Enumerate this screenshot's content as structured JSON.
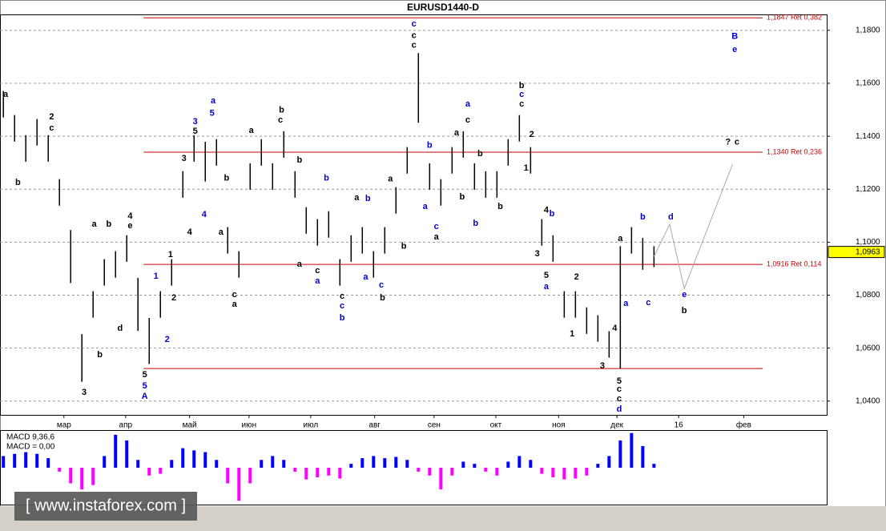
{
  "chart_data": {
    "type": "ohlc",
    "title": "EURUSD1440-D",
    "color": "#000000",
    "high": [
      1.1571,
      1.148,
      1.1404,
      1.1465,
      1.1404,
      1.1238,
      1.1046,
      1.0653,
      1.0815,
      1.0936,
      1.0966,
      1.1026,
      1.0865,
      1.0714,
      1.0815,
      1.0936,
      1.1268,
      1.1404,
      1.1379,
      1.1389,
      1.1057,
      1.0966,
      1.1298,
      1.1389,
      1.1298,
      1.1419,
      1.1268,
      1.1132,
      1.1087,
      1.1117,
      1.0936,
      1.1026,
      1.1057,
      1.0966,
      1.1057,
      1.1208,
      1.1359,
      1.1714,
      1.1298,
      1.1238,
      1.1359,
      1.1419,
      1.1298,
      1.1268,
      1.1268,
      1.1389,
      1.148,
      1.1359,
      1.1087,
      1.1026,
      1.0815,
      1.0815,
      1.0754,
      1.0724,
      1.0664,
      1.0985,
      1.1057,
      1.1016,
      1.0985
    ],
    "low": [
      1.1471,
      1.138,
      1.1304,
      1.1365,
      1.1304,
      1.1138,
      1.0846,
      1.0473,
      1.0715,
      1.0836,
      1.0866,
      1.0926,
      1.0665,
      1.054,
      1.0715,
      1.0836,
      1.1168,
      1.1304,
      1.1229,
      1.1289,
      1.0957,
      1.0866,
      1.1198,
      1.1289,
      1.1198,
      1.1319,
      1.1168,
      1.1032,
      1.0987,
      1.1017,
      1.0836,
      1.0926,
      1.0957,
      1.0866,
      1.0957,
      1.1108,
      1.1259,
      1.1451,
      1.1198,
      1.1138,
      1.1259,
      1.1319,
      1.1198,
      1.1168,
      1.1168,
      1.1289,
      1.138,
      1.1259,
      1.0987,
      1.0926,
      1.0715,
      1.0715,
      1.0654,
      1.0624,
      1.0564,
      1.0523,
      1.0957,
      1.0896,
      1.0906
    ],
    "xlim": [
      -0.3,
      73.4
    ],
    "xticks": [
      {
        "value": 5.4,
        "label": "мар"
      },
      {
        "value": 10.9,
        "label": "апр"
      },
      {
        "value": 16.6,
        "label": "май"
      },
      {
        "value": 21.9,
        "label": "июн"
      },
      {
        "value": 27.4,
        "label": "июл"
      },
      {
        "value": 33.1,
        "label": "авг"
      },
      {
        "value": 38.4,
        "label": "сен"
      },
      {
        "value": 43.9,
        "label": "окт"
      },
      {
        "value": 49.5,
        "label": "ноя"
      },
      {
        "value": 54.7,
        "label": "дек"
      },
      {
        "value": 60.2,
        "label": "16"
      },
      {
        "value": 66.0,
        "label": "фев"
      }
    ],
    "ylim": [
      1.0348,
      1.186
    ],
    "yticks": [
      {
        "value": 1.04,
        "label": "1,0400"
      },
      {
        "value": 1.06,
        "label": "1,0600"
      },
      {
        "value": 1.08,
        "label": "1,0800"
      },
      {
        "value": 1.1,
        "label": "1,1000"
      },
      {
        "value": 1.12,
        "label": "1,1200"
      },
      {
        "value": 1.14,
        "label": "1,1400"
      },
      {
        "value": 1.16,
        "label": "1,1600"
      },
      {
        "value": 1.18,
        "label": "1,1800"
      }
    ],
    "grid": true,
    "last_price": {
      "value": 1.0963,
      "label": "1,0963"
    },
    "levels_color": "#cc0000",
    "levels": [
      {
        "value": 1.1847,
        "label": "1,1847 Ret 0,382",
        "x_start": 12.5
      },
      {
        "value": 1.134,
        "label": "1,1340 Ret 0,236",
        "x_start": 12.5
      },
      {
        "value": 1.0916,
        "label": "1,0916 Ret 0,114",
        "x_start": 12.5
      },
      {
        "value": 1.0523,
        "x_start": 12.5
      }
    ],
    "projection": {
      "color": "#aaaaaa",
      "x": [
        58,
        59.4,
        60.7,
        65
      ],
      "y": [
        1.0946,
        1.1067,
        1.0825,
        1.1294
      ]
    },
    "annotations": [
      {
        "text": "a",
        "x": 0.2,
        "y": 1.1557,
        "color": "#000000"
      },
      {
        "text": "b",
        "x": 1.3,
        "y": 1.1224,
        "color": "#000000"
      },
      {
        "text": "2",
        "x": 4.3,
        "y": 1.1472,
        "color": "#000000"
      },
      {
        "text": "c",
        "x": 4.3,
        "y": 1.143,
        "color": "#000000"
      },
      {
        "text": "a",
        "x": 8.1,
        "y": 1.1067,
        "color": "#000000"
      },
      {
        "text": "b",
        "x": 9.4,
        "y": 1.1067,
        "color": "#000000"
      },
      {
        "text": "3",
        "x": 7.2,
        "y": 1.0432,
        "color": "#000000"
      },
      {
        "text": "b",
        "x": 8.6,
        "y": 1.0574,
        "color": "#000000"
      },
      {
        "text": "d",
        "x": 10.4,
        "y": 1.0674,
        "color": "#000000"
      },
      {
        "text": "4",
        "x": 11.3,
        "y": 1.1097,
        "color": "#000000"
      },
      {
        "text": "e",
        "x": 11.3,
        "y": 1.1061,
        "color": "#000000"
      },
      {
        "text": "5",
        "x": 12.6,
        "y": 1.0499,
        "color": "#000000"
      },
      {
        "text": "5",
        "x": 12.6,
        "y": 1.0456,
        "color": "#0000cc"
      },
      {
        "text": "A",
        "x": 12.6,
        "y": 1.0417,
        "color": "#0000cc"
      },
      {
        "text": "1",
        "x": 13.6,
        "y": 1.0871,
        "color": "#0000cc"
      },
      {
        "text": "2",
        "x": 14.6,
        "y": 1.0632,
        "color": "#0000cc"
      },
      {
        "text": "1",
        "x": 14.9,
        "y": 1.0952,
        "color": "#000000"
      },
      {
        "text": "2",
        "x": 15.2,
        "y": 1.0789,
        "color": "#000000"
      },
      {
        "text": "3",
        "x": 16.1,
        "y": 1.1315,
        "color": "#000000"
      },
      {
        "text": "4",
        "x": 16.6,
        "y": 1.1037,
        "color": "#000000"
      },
      {
        "text": "3",
        "x": 17.1,
        "y": 1.1454,
        "color": "#0000cc"
      },
      {
        "text": "5",
        "x": 17.1,
        "y": 1.1418,
        "color": "#000000"
      },
      {
        "text": "4",
        "x": 17.9,
        "y": 1.1103,
        "color": "#0000cc"
      },
      {
        "text": "a",
        "x": 18.7,
        "y": 1.1533,
        "color": "#0000cc"
      },
      {
        "text": "5",
        "x": 18.6,
        "y": 1.1487,
        "color": "#0000cc"
      },
      {
        "text": "b",
        "x": 19.9,
        "y": 1.1242,
        "color": "#000000"
      },
      {
        "text": "a",
        "x": 19.4,
        "y": 1.1037,
        "color": "#000000"
      },
      {
        "text": "c",
        "x": 20.6,
        "y": 1.0801,
        "color": "#000000"
      },
      {
        "text": "a",
        "x": 20.6,
        "y": 1.0765,
        "color": "#000000"
      },
      {
        "text": "a",
        "x": 22.1,
        "y": 1.1421,
        "color": "#000000"
      },
      {
        "text": "b",
        "x": 24.8,
        "y": 1.1499,
        "color": "#000000"
      },
      {
        "text": "c",
        "x": 24.7,
        "y": 1.146,
        "color": "#000000"
      },
      {
        "text": "b",
        "x": 26.4,
        "y": 1.1309,
        "color": "#000000"
      },
      {
        "text": "a",
        "x": 26.4,
        "y": 1.0916,
        "color": "#000000"
      },
      {
        "text": "b",
        "x": 28.8,
        "y": 1.1242,
        "color": "#0000cc"
      },
      {
        "text": "c",
        "x": 28,
        "y": 1.0892,
        "color": "#000000"
      },
      {
        "text": "a",
        "x": 28,
        "y": 1.0852,
        "color": "#0000cc"
      },
      {
        "text": "c",
        "x": 30.2,
        "y": 1.0795,
        "color": "#000000"
      },
      {
        "text": "c",
        "x": 30.2,
        "y": 1.0759,
        "color": "#0000cc"
      },
      {
        "text": "b",
        "x": 30.2,
        "y": 1.0713,
        "color": "#0000cc"
      },
      {
        "text": "a",
        "x": 31.5,
        "y": 1.1167,
        "color": "#000000"
      },
      {
        "text": "b",
        "x": 32.5,
        "y": 1.1164,
        "color": "#0000cc"
      },
      {
        "text": "a",
        "x": 32.3,
        "y": 1.0868,
        "color": "#0000cc"
      },
      {
        "text": "c",
        "x": 33.7,
        "y": 1.0837,
        "color": "#0000cc"
      },
      {
        "text": "b",
        "x": 33.8,
        "y": 1.0789,
        "color": "#000000"
      },
      {
        "text": "a",
        "x": 34.5,
        "y": 1.1239,
        "color": "#000000"
      },
      {
        "text": "b",
        "x": 35.7,
        "y": 1.0985,
        "color": "#000000"
      },
      {
        "text": "c",
        "x": 36.6,
        "y": 1.1823,
        "color": "#0000cc"
      },
      {
        "text": "c",
        "x": 36.6,
        "y": 1.178,
        "color": "#000000"
      },
      {
        "text": "c",
        "x": 36.6,
        "y": 1.1744,
        "color": "#000000"
      },
      {
        "text": "b",
        "x": 38,
        "y": 1.1366,
        "color": "#0000cc"
      },
      {
        "text": "a",
        "x": 37.6,
        "y": 1.1134,
        "color": "#0000cc"
      },
      {
        "text": "c",
        "x": 38.6,
        "y": 1.1058,
        "color": "#0000cc"
      },
      {
        "text": "a",
        "x": 38.6,
        "y": 1.1019,
        "color": "#000000"
      },
      {
        "text": "a",
        "x": 40.4,
        "y": 1.1412,
        "color": "#000000"
      },
      {
        "text": "a",
        "x": 41.4,
        "y": 1.1521,
        "color": "#0000cc"
      },
      {
        "text": "c",
        "x": 41.4,
        "y": 1.146,
        "color": "#000000"
      },
      {
        "text": "b",
        "x": 40.9,
        "y": 1.117,
        "color": "#000000"
      },
      {
        "text": "b",
        "x": 42.5,
        "y": 1.1333,
        "color": "#000000"
      },
      {
        "text": "b",
        "x": 42.1,
        "y": 1.107,
        "color": "#0000cc"
      },
      {
        "text": "b",
        "x": 44.3,
        "y": 1.1134,
        "color": "#000000"
      },
      {
        "text": "b",
        "x": 46.2,
        "y": 1.159,
        "color": "#000000"
      },
      {
        "text": "c",
        "x": 46.2,
        "y": 1.1557,
        "color": "#0000cc"
      },
      {
        "text": "c",
        "x": 46.2,
        "y": 1.1521,
        "color": "#000000"
      },
      {
        "text": "2",
        "x": 47.1,
        "y": 1.1406,
        "color": "#000000"
      },
      {
        "text": "1",
        "x": 46.6,
        "y": 1.1279,
        "color": "#000000"
      },
      {
        "text": "4",
        "x": 48.4,
        "y": 1.1121,
        "color": "#000000"
      },
      {
        "text": "b",
        "x": 48.9,
        "y": 1.1106,
        "color": "#0000cc"
      },
      {
        "text": "3",
        "x": 47.6,
        "y": 1.0955,
        "color": "#000000"
      },
      {
        "text": "5",
        "x": 48.4,
        "y": 1.0874,
        "color": "#000000"
      },
      {
        "text": "a",
        "x": 48.4,
        "y": 1.0831,
        "color": "#0000cc"
      },
      {
        "text": "2",
        "x": 51.1,
        "y": 1.0868,
        "color": "#000000"
      },
      {
        "text": "1",
        "x": 50.7,
        "y": 1.0653,
        "color": "#000000"
      },
      {
        "text": "3",
        "x": 53.4,
        "y": 1.0532,
        "color": "#000000"
      },
      {
        "text": "4",
        "x": 54.5,
        "y": 1.0674,
        "color": "#000000"
      },
      {
        "text": "5",
        "x": 54.9,
        "y": 1.0475,
        "color": "#000000"
      },
      {
        "text": "c",
        "x": 54.9,
        "y": 1.0444,
        "color": "#000000"
      },
      {
        "text": "c",
        "x": 54.9,
        "y": 1.0408,
        "color": "#000000"
      },
      {
        "text": "d",
        "x": 54.9,
        "y": 1.0369,
        "color": "#0000cc"
      },
      {
        "text": "a",
        "x": 55,
        "y": 1.1013,
        "color": "#000000"
      },
      {
        "text": "a",
        "x": 55.5,
        "y": 1.0768,
        "color": "#0000cc"
      },
      {
        "text": "b",
        "x": 57,
        "y": 1.1094,
        "color": "#0000cc"
      },
      {
        "text": "c",
        "x": 57.5,
        "y": 1.0771,
        "color": "#0000cc"
      },
      {
        "text": "d",
        "x": 59.5,
        "y": 1.1094,
        "color": "#0000cc"
      },
      {
        "text": "e",
        "x": 60.7,
        "y": 1.0801,
        "color": "#0000cc"
      },
      {
        "text": "b",
        "x": 60.7,
        "y": 1.0741,
        "color": "#000000"
      },
      {
        "text": "B",
        "x": 65.2,
        "y": 1.1777,
        "color": "#0000cc"
      },
      {
        "text": "e",
        "x": 65.2,
        "y": 1.1726,
        "color": "#0000cc"
      },
      {
        "text": "?",
        "x": 64.6,
        "y": 1.1378,
        "color": "#000000"
      },
      {
        "text": "c",
        "x": 65.4,
        "y": 1.1378,
        "color": "#000000"
      }
    ],
    "macd": {
      "labels": [
        "MACD 9,36,6",
        "MACD = 0,00"
      ],
      "ylim": [
        -0.0085,
        0.0085
      ],
      "positive_color": "#0000ff",
      "negative_color": "#ff00ff",
      "values": [
        0.0027,
        0.0032,
        0.0036,
        0.0032,
        0.0022,
        -0.0009,
        -0.0036,
        -0.005,
        -0.004,
        0.0027,
        0.0076,
        0.0063,
        0.0018,
        -0.0018,
        -0.0014,
        0.0018,
        0.0045,
        0.004,
        0.0036,
        0.0018,
        -0.0036,
        -0.0076,
        -0.0036,
        0.0018,
        0.0027,
        0.0018,
        -0.0009,
        -0.0027,
        -0.0022,
        -0.0018,
        -0.0025,
        0.0009,
        0.0022,
        0.0027,
        0.0022,
        0.0025,
        0.0018,
        -0.0009,
        -0.0018,
        -0.005,
        -0.0018,
        0.0014,
        0.0009,
        -0.0009,
        -0.0018,
        0.0014,
        0.0027,
        0.0018,
        -0.0014,
        -0.0022,
        -0.0027,
        -0.0025,
        -0.0018,
        0.0009,
        0.0027,
        0.0063,
        0.008,
        0.005,
        0.0009
      ]
    },
    "watermark": "[ www.instaforex.com ]"
  }
}
